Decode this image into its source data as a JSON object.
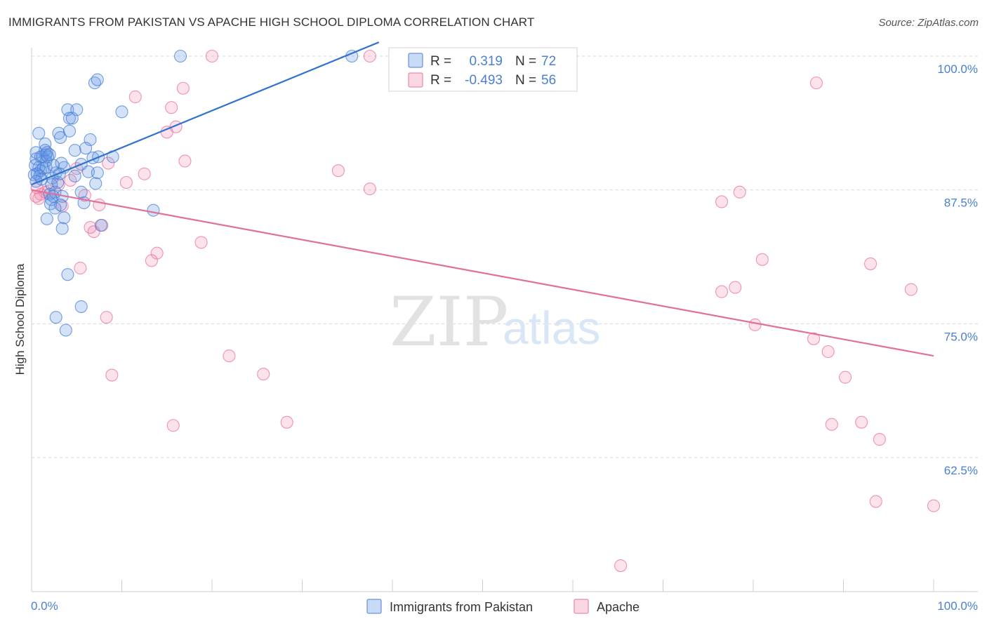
{
  "title": "IMMIGRANTS FROM PAKISTAN VS APACHE HIGH SCHOOL DIPLOMA CORRELATION CHART",
  "source": "Source: ZipAtlas.com",
  "watermark": {
    "part1": "ZIP",
    "part2": "atlas"
  },
  "colors": {
    "blue": "#4a7fd4",
    "blue_fill": "rgba(100,150,230,0.28)",
    "blue_line": "#2f72d0",
    "pink": "#e8739a",
    "pink_fill": "rgba(240,140,175,0.25)",
    "pink_line": "#e0709a",
    "grid": "#d8d8d8"
  },
  "legend": {
    "rows": [
      {
        "r_label": "R =",
        "r_value": "0.319",
        "n_label": "N =",
        "n_value": "72",
        "series": "blue"
      },
      {
        "r_label": "R =",
        "r_value": "-0.493",
        "n_label": "N =",
        "n_value": "56",
        "series": "pink"
      }
    ]
  },
  "chart_data": {
    "type": "scatter",
    "title": "IMMIGRANTS FROM PAKISTAN VS APACHE HIGH SCHOOL DIPLOMA CORRELATION CHART",
    "xlabel": "",
    "ylabel": "High School Diploma",
    "xlim": [
      0,
      100
    ],
    "ylim": [
      50,
      101.2
    ],
    "x_tick_labels": [
      {
        "value": 0,
        "label": "0.0%"
      },
      {
        "value": 100,
        "label": "100.0%"
      }
    ],
    "y_ticks": [
      {
        "value": 100,
        "label": "100.0%"
      },
      {
        "value": 87.5,
        "label": "87.5%"
      },
      {
        "value": 75,
        "label": "75.0%"
      },
      {
        "value": 62.5,
        "label": "62.5%"
      }
    ],
    "series": [
      {
        "name": "Immigrants from Pakistan",
        "color": "blue",
        "trendline": {
          "x": [
            0,
            38.5
          ],
          "y": [
            88.0,
            101.3
          ]
        },
        "points": [
          [
            16.5,
            100.0
          ],
          [
            35.5,
            100.0
          ],
          [
            7.0,
            97.5
          ],
          [
            7.3,
            97.8
          ],
          [
            4.0,
            95.0
          ],
          [
            5.0,
            95.0
          ],
          [
            10.0,
            94.8
          ],
          [
            4.2,
            94.2
          ],
          [
            4.5,
            94.2
          ],
          [
            4.2,
            93.0
          ],
          [
            0.8,
            92.8
          ],
          [
            3.0,
            92.8
          ],
          [
            3.2,
            92.4
          ],
          [
            6.5,
            92.2
          ],
          [
            1.5,
            91.8
          ],
          [
            1.5,
            91.2
          ],
          [
            4.8,
            91.2
          ],
          [
            1.6,
            90.8
          ],
          [
            1.7,
            91.0
          ],
          [
            0.5,
            91.0
          ],
          [
            1.0,
            90.6
          ],
          [
            0.5,
            90.4
          ],
          [
            1.2,
            90.6
          ],
          [
            1.8,
            90.6
          ],
          [
            6.8,
            90.5
          ],
          [
            7.4,
            90.6
          ],
          [
            9.0,
            90.6
          ],
          [
            1.6,
            90.2
          ],
          [
            3.3,
            90.0
          ],
          [
            3.6,
            89.6
          ],
          [
            5.5,
            89.9
          ],
          [
            0.4,
            89.8
          ],
          [
            0.8,
            89.6
          ],
          [
            1.0,
            89.3
          ],
          [
            1.3,
            89.5
          ],
          [
            1.6,
            89.6
          ],
          [
            6.3,
            89.2
          ],
          [
            7.3,
            89.1
          ],
          [
            0.3,
            88.9
          ],
          [
            0.6,
            89.0
          ],
          [
            0.9,
            88.8
          ],
          [
            1.1,
            88.5
          ],
          [
            2.3,
            88.6
          ],
          [
            2.7,
            89.1
          ],
          [
            3.1,
            89.0
          ],
          [
            0.5,
            88.3
          ],
          [
            2.2,
            88.0
          ],
          [
            2.9,
            88.2
          ],
          [
            7.1,
            88.1
          ],
          [
            2.6,
            87.3
          ],
          [
            2.0,
            87.1
          ],
          [
            2.4,
            86.9
          ],
          [
            3.4,
            86.9
          ],
          [
            5.5,
            87.3
          ],
          [
            2.2,
            86.6
          ],
          [
            2.1,
            86.2
          ],
          [
            3.2,
            86.1
          ],
          [
            5.8,
            86.3
          ],
          [
            2.6,
            85.8
          ],
          [
            13.5,
            85.6
          ],
          [
            1.7,
            84.8
          ],
          [
            3.6,
            84.9
          ],
          [
            3.4,
            83.9
          ],
          [
            7.7,
            84.2
          ],
          [
            4.0,
            79.6
          ],
          [
            5.5,
            76.6
          ],
          [
            2.7,
            75.6
          ],
          [
            3.8,
            74.4
          ],
          [
            2.4,
            89.8
          ],
          [
            4.8,
            88.8
          ],
          [
            2.0,
            90.8
          ],
          [
            6.0,
            91.4
          ]
        ]
      },
      {
        "name": "Apache",
        "color": "pink",
        "trendline": {
          "x": [
            0,
            100
          ],
          "y": [
            87.5,
            72.0
          ]
        },
        "points": [
          [
            20.0,
            100.0
          ],
          [
            37.5,
            100.0
          ],
          [
            87.0,
            97.5
          ],
          [
            16.8,
            97.0
          ],
          [
            11.5,
            96.2
          ],
          [
            15.5,
            95.2
          ],
          [
            16.0,
            93.4
          ],
          [
            15.0,
            92.9
          ],
          [
            1.0,
            87.1
          ],
          [
            0.8,
            86.7
          ],
          [
            1.5,
            87.3
          ],
          [
            3.4,
            86.0
          ],
          [
            5.0,
            89.5
          ],
          [
            8.5,
            90.0
          ],
          [
            17.0,
            90.2
          ],
          [
            12.5,
            89.0
          ],
          [
            34.0,
            89.3
          ],
          [
            37.5,
            87.6
          ],
          [
            78.5,
            87.3
          ],
          [
            76.5,
            86.4
          ],
          [
            0.6,
            87.7
          ],
          [
            1.9,
            87.4
          ],
          [
            7.5,
            86.1
          ],
          [
            5.9,
            87.0
          ],
          [
            6.5,
            84.0
          ],
          [
            6.9,
            83.6
          ],
          [
            7.8,
            84.2
          ],
          [
            18.8,
            82.6
          ],
          [
            13.9,
            81.6
          ],
          [
            13.3,
            80.9
          ],
          [
            5.4,
            80.2
          ],
          [
            81.0,
            81.0
          ],
          [
            93.0,
            80.6
          ],
          [
            97.5,
            78.2
          ],
          [
            78.0,
            78.4
          ],
          [
            76.5,
            78.0
          ],
          [
            8.3,
            75.6
          ],
          [
            80.2,
            74.9
          ],
          [
            86.7,
            73.6
          ],
          [
            88.3,
            72.4
          ],
          [
            21.9,
            72.0
          ],
          [
            8.9,
            70.2
          ],
          [
            25.7,
            70.3
          ],
          [
            90.2,
            70.0
          ],
          [
            15.7,
            65.5
          ],
          [
            28.3,
            65.8
          ],
          [
            88.7,
            65.6
          ],
          [
            92.0,
            65.8
          ],
          [
            94.0,
            64.2
          ],
          [
            93.6,
            58.4
          ],
          [
            100.0,
            58.0
          ],
          [
            65.3,
            52.4
          ],
          [
            0.5,
            86.9
          ],
          [
            4.3,
            88.4
          ],
          [
            3.0,
            88.0
          ],
          [
            10.5,
            88.2
          ]
        ]
      }
    ],
    "legend": [
      "Immigrants from Pakistan",
      "Apache"
    ]
  }
}
